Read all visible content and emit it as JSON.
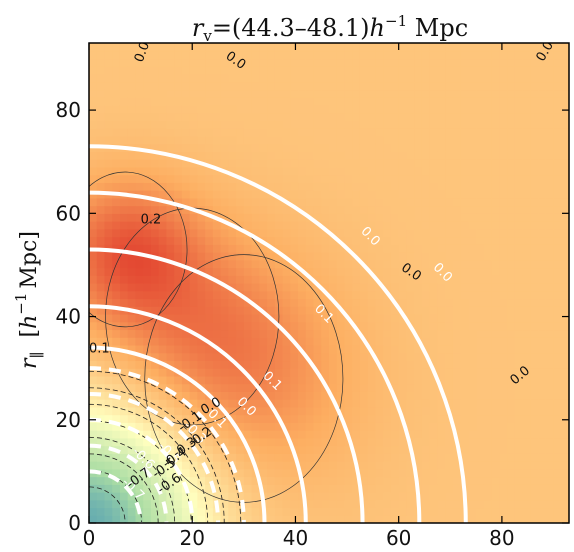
{
  "chart_data": {
    "type": "heatmap",
    "title": "r_v = (44.3–48.1) h⁻¹ Mpc",
    "title_parts": {
      "r": "r",
      "sub": "v",
      "range": "=(44.3–48.1)",
      "h": "h",
      "exp": "−1",
      "unit": " Mpc"
    },
    "xlabel": "",
    "ylabel": "r∥ [h⁻¹ Mpc]",
    "ylabel_parts": {
      "r": "r",
      "sub": "∥",
      "bracket_open": "[",
      "h": "h",
      "exp": "−1",
      "unit": "Mpc]"
    },
    "xlim": [
      0,
      93
    ],
    "ylim": [
      0,
      93
    ],
    "xticks": [
      0,
      20,
      40,
      60,
      80
    ],
    "yticks": [
      0,
      20,
      40,
      60,
      80
    ],
    "xtick_labels": [
      "0",
      "20",
      "40",
      "60",
      "80"
    ],
    "ytick_labels": [
      "0",
      "20",
      "40",
      "60",
      "80"
    ],
    "colormap": [
      "#2b83ba",
      "#abdda4",
      "#ffffbf",
      "#fdae61",
      "#d7191c"
    ],
    "color_range": [
      -1,
      0.5
    ],
    "field_features": [
      {
        "x": 0,
        "y": 0,
        "value": -0.85,
        "sigma": 15
      },
      {
        "x": 7,
        "y": 53,
        "value": 0.28,
        "sigma": 10
      },
      {
        "x": 30,
        "y": 28,
        "value": 0.18,
        "sigma": 16
      },
      {
        "x": 20,
        "y": 40,
        "value": 0.12,
        "sigma": 14
      }
    ],
    "model_contours": [
      {
        "level": "0.0",
        "radius": 73,
        "dashed": false,
        "label_at": [
          68,
          48
        ],
        "label": "0.0"
      },
      {
        "level": "0.0",
        "radius": 64,
        "dashed": false,
        "label_at": [
          54,
          55
        ],
        "label": "0.0"
      },
      {
        "level": "0.1",
        "radius": 53,
        "dashed": false,
        "label_at": [
          45,
          40
        ],
        "label": "0.1"
      },
      {
        "level": "0.1",
        "radius": 42,
        "dashed": false,
        "label_at": [
          35,
          27
        ],
        "label": "0.1"
      },
      {
        "level": "0.0",
        "radius": 34,
        "dashed": false,
        "label_at": [
          30,
          22
        ],
        "label": "0.0"
      },
      {
        "level": "-0.1",
        "radius": 30,
        "dashed": true,
        "label_at": [
          24,
          20
        ],
        "label": "-0.1"
      },
      {
        "level": "-0.3",
        "radius": 25,
        "dashed": true,
        "label_at": [
          20,
          17
        ],
        "label": "-0.3"
      },
      {
        "level": "-0.5",
        "radius": 20,
        "dashed": true,
        "label_at": [
          15,
          13
        ],
        "label": "-0.5"
      },
      {
        "level": "-0.6",
        "radius": 15,
        "dashed": true,
        "label_at": [
          10,
          12
        ],
        "label": "-0.6"
      },
      {
        "level": "-0.7",
        "radius": 10,
        "dashed": true,
        "label_at": [
          8,
          6
        ],
        "label": "-0.7"
      }
    ],
    "data_contour_labels": [
      {
        "x": 12,
        "y": 58,
        "text": "0.2",
        "angle": 0
      },
      {
        "x": 2,
        "y": 33,
        "text": "0.1",
        "angle": 0
      },
      {
        "x": 11,
        "y": 91,
        "text": "0.0",
        "angle": -70
      },
      {
        "x": 28,
        "y": 89,
        "text": "0.0",
        "angle": 35
      },
      {
        "x": 89,
        "y": 91,
        "text": "0.0",
        "angle": -60
      },
      {
        "x": 84,
        "y": 28,
        "text": "0.0",
        "angle": -40
      },
      {
        "x": 62,
        "y": 48,
        "text": "0.0",
        "angle": 35
      },
      {
        "x": 24,
        "y": 22,
        "text": "0.0",
        "angle": -30
      },
      {
        "x": 20,
        "y": 19,
        "text": "-0.1",
        "angle": -35
      },
      {
        "x": 22,
        "y": 16,
        "text": "-0.2",
        "angle": -35
      },
      {
        "x": 19,
        "y": 14,
        "text": "-0.3",
        "angle": -35
      },
      {
        "x": 17,
        "y": 12,
        "text": "-0.4",
        "angle": -35
      },
      {
        "x": 15,
        "y": 10,
        "text": "-0.5",
        "angle": -35
      },
      {
        "x": 16,
        "y": 7,
        "text": "-0.6",
        "angle": -35
      },
      {
        "x": 10,
        "y": 8,
        "text": "-0.7",
        "angle": -35
      }
    ],
    "grid": false
  }
}
